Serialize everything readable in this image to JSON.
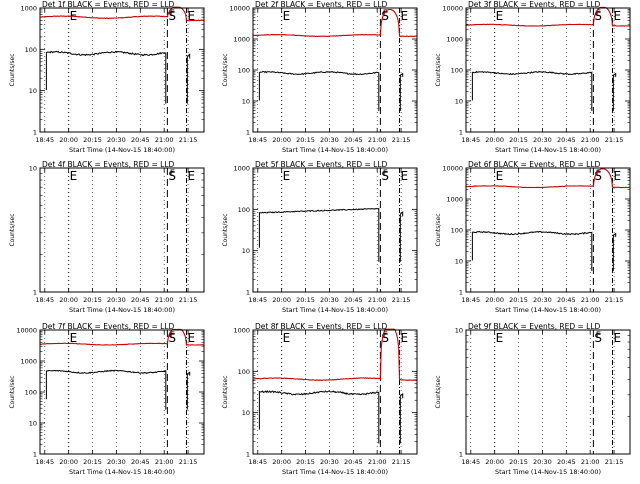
{
  "colors": {
    "events": "#000000",
    "lld": "#cc0000"
  },
  "common": {
    "xlabel": "Start Time (14-Nov-15 18:40:00)",
    "ylabel": "Counts/sec",
    "x_ticks": [
      "18:45",
      "20:00",
      "20:15",
      "20:30",
      "20:45",
      "21:00",
      "21:15"
    ],
    "x_range_minutes": [
      0,
      103
    ],
    "markers": [
      {
        "label": "E",
        "type": "dotted",
        "t": 18
      },
      {
        "label": "S",
        "type": "dashed",
        "t": 80
      },
      {
        "label": "E",
        "type": "dashdot",
        "t": 92
      }
    ],
    "flare_window_label": "F"
  },
  "chart_data": [
    {
      "type": "line",
      "title": "Det 1f BLACK = Events, RED = LLD",
      "ylim": [
        1,
        1000
      ],
      "y_ticks": [
        "1",
        "10",
        "100",
        "1000"
      ],
      "events": "standard",
      "lld": {
        "base": 600,
        "peak": 1100,
        "drop": 500
      }
    },
    {
      "type": "line",
      "title": "Det 2f BLACK = Events, RED = LLD",
      "ylim": [
        1,
        10000
      ],
      "y_ticks": [
        "1",
        "10",
        "100",
        "1000",
        "10000"
      ],
      "events": "standard",
      "lld": {
        "base": 1300,
        "peak": 9000
      }
    },
    {
      "type": "line",
      "title": "Det 3f BLACK = Events, RED = LLD",
      "ylim": [
        1,
        10000
      ],
      "y_ticks": [
        "1",
        "10",
        "100",
        "1000",
        "10000"
      ],
      "events": "standard",
      "lld": {
        "base": 2800,
        "peak": 11000
      }
    },
    {
      "type": "line",
      "title": "Det 4f BLACK = Events, RED = LLD",
      "ylim": [
        1,
        10
      ],
      "y_ticks": [
        "1",
        "10"
      ],
      "events": "none",
      "lld": null
    },
    {
      "type": "line",
      "title": "Det 5f BLACK = Events, RED = LLD",
      "ylim": [
        1,
        1000
      ],
      "y_ticks": [
        "1",
        "10",
        "100",
        "1000"
      ],
      "events": "high",
      "lld": null
    },
    {
      "type": "line",
      "title": "Det 6f BLACK = Events, RED = LLD",
      "ylim": [
        1,
        10000
      ],
      "y_ticks": [
        "1",
        "10",
        "100",
        "1000",
        "10000"
      ],
      "events": "standard",
      "lld": {
        "base": 2500,
        "peak": 9500
      }
    },
    {
      "type": "line",
      "title": "Det 7f BLACK = Events, RED = LLD",
      "ylim": [
        1,
        10000
      ],
      "y_ticks": [
        "1",
        "10",
        "100",
        "1000",
        "10000"
      ],
      "events": "mid",
      "lld": {
        "base": 3500,
        "peak": 12000
      }
    },
    {
      "type": "line",
      "title": "Det 8f BLACK = Events, RED = LLD",
      "ylim": [
        1,
        1000
      ],
      "y_ticks": [
        "1",
        "10",
        "100",
        "1000"
      ],
      "events": "low",
      "lld": {
        "base": 65,
        "peak": 1300
      }
    },
    {
      "type": "line",
      "title": "Det 9f BLACK = Events, RED = LLD",
      "ylim": [
        1,
        10
      ],
      "y_ticks": [
        "1",
        "10"
      ],
      "events": "none",
      "lld": null
    }
  ]
}
